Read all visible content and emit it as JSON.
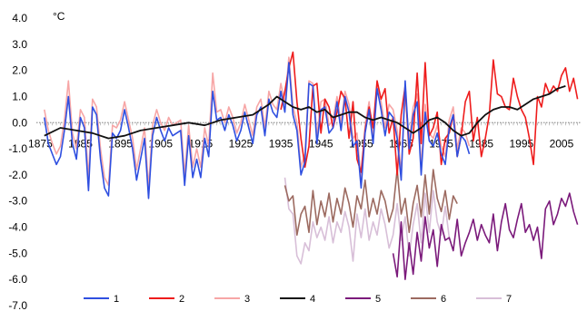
{
  "chart_data": {
    "type": "line",
    "ylabel": "°C",
    "xlim": [
      1874,
      2010
    ],
    "ylim": [
      -7.0,
      4.0
    ],
    "x_ticks": [
      1875,
      1885,
      1895,
      1905,
      1915,
      1925,
      1935,
      1945,
      1955,
      1965,
      1975,
      1985,
      1995,
      2005
    ],
    "y_ticks": [
      4.0,
      3.0,
      2.0,
      1.0,
      0.0,
      -1.0,
      -2.0,
      -3.0,
      -4.0,
      -5.0,
      -6.0,
      -7.0
    ],
    "y_tick_labels": [
      "4.0",
      "3.0",
      "2.0",
      "1.0",
      "0.0",
      "-1.0",
      "-2.0",
      "-3.0",
      "-4.0",
      "-5.0",
      "-6.0",
      "-7.0"
    ],
    "x_tick_labels": [
      "1875",
      "1885",
      "1895",
      "1905",
      "1915",
      "1925",
      "1935",
      "1945",
      "1955",
      "1965",
      "1975",
      "1985",
      "1995",
      "2005"
    ],
    "legend_position": "bottom",
    "series": [
      {
        "name": "1",
        "color": "#2f4fe0",
        "x": [
          1876,
          1877,
          1878,
          1879,
          1880,
          1881,
          1882,
          1883,
          1884,
          1885,
          1886,
          1887,
          1888,
          1889,
          1890,
          1891,
          1892,
          1893,
          1894,
          1895,
          1896,
          1897,
          1898,
          1899,
          1900,
          1901,
          1902,
          1903,
          1904,
          1905,
          1906,
          1907,
          1908,
          1909,
          1910,
          1911,
          1912,
          1913,
          1914,
          1915,
          1916,
          1917,
          1918,
          1919,
          1920,
          1921,
          1922,
          1923,
          1924,
          1925,
          1926,
          1927,
          1928,
          1929,
          1930,
          1931,
          1932,
          1933,
          1934,
          1935,
          1936,
          1937,
          1938,
          1939,
          1940,
          1941,
          1942,
          1943,
          1944,
          1945,
          1946,
          1947,
          1948,
          1949,
          1950,
          1951,
          1952,
          1953,
          1954,
          1955,
          1956,
          1957,
          1958,
          1959,
          1960,
          1961,
          1962,
          1963,
          1964,
          1965,
          1966,
          1967,
          1968,
          1969,
          1970,
          1971,
          1972,
          1973,
          1974,
          1975,
          1976,
          1977,
          1978,
          1979,
          1980,
          1981,
          1982
        ],
        "y": [
          0.2,
          -0.8,
          -1.2,
          -1.6,
          -1.3,
          -0.3,
          1.0,
          -0.8,
          -1.4,
          0.2,
          -0.2,
          -2.6,
          0.6,
          0.3,
          -1.4,
          -2.5,
          -2.8,
          -0.4,
          -0.6,
          -0.3,
          0.5,
          -0.2,
          -1.0,
          -2.2,
          -1.4,
          -0.6,
          -2.9,
          -0.5,
          0.2,
          -0.3,
          -0.7,
          -0.2,
          -0.5,
          -0.4,
          -0.3,
          -2.4,
          -0.5,
          -2.1,
          -1.4,
          -2.1,
          -0.6,
          -1.3,
          1.2,
          0.1,
          0.2,
          -0.3,
          0.3,
          -0.1,
          -0.7,
          -0.3,
          0.4,
          -0.2,
          -0.8,
          0.3,
          0.6,
          -0.5,
          0.9,
          0.4,
          0.2,
          1.2,
          0.4,
          2.3,
          0.3,
          -0.3,
          -2.0,
          -1.5,
          1.5,
          1.4,
          -0.8,
          0.5,
          0.6,
          -0.4,
          -0.2,
          0.8,
          -0.3,
          1.0,
          0.4,
          -0.9,
          -0.7,
          -2.5,
          -0.4,
          0.5,
          -0.8,
          1.3,
          0.5,
          -0.5,
          0.4,
          0.2,
          -0.6,
          -2.2,
          1.6,
          -1.0,
          0.3,
          0.8,
          -2.0,
          0.4,
          -0.7,
          -0.9,
          -0.4,
          -1.2,
          -1.6,
          -0.2,
          0.3,
          -1.3,
          -0.5,
          -0.7,
          -1.2
        ]
      },
      {
        "name": "2",
        "color": "#ee1c1c",
        "x": [
          1935,
          1936,
          1937,
          1938,
          1939,
          1940,
          1941,
          1942,
          1943,
          1944,
          1945,
          1946,
          1947,
          1948,
          1949,
          1950,
          1951,
          1952,
          1953,
          1954,
          1955,
          1956,
          1957,
          1958,
          1959,
          1960,
          1961,
          1962,
          1963,
          1964,
          1965,
          1966,
          1967,
          1968,
          1969,
          1970,
          1971,
          1972,
          1973,
          1974,
          1975,
          1976,
          1977,
          1978,
          1979,
          1980,
          1981,
          1982,
          1983,
          1984,
          1985,
          1986,
          1987,
          1988,
          1989,
          1990,
          1991,
          1992,
          1993,
          1994,
          1995,
          1996,
          1997,
          1998,
          1999,
          2000,
          2001,
          2002,
          2003,
          2004,
          2005,
          2006,
          2007,
          2008,
          2009
        ],
        "y": [
          0.5,
          1.2,
          2.1,
          2.7,
          0.8,
          -0.6,
          -1.7,
          -0.9,
          1.4,
          1.5,
          -0.4,
          0.9,
          0.6,
          -0.2,
          0.4,
          1.2,
          0.9,
          -0.6,
          0.8,
          -1.4,
          -1.9,
          -0.3,
          0.6,
          -0.2,
          1.6,
          0.9,
          1.3,
          -0.4,
          0.2,
          -2.0,
          0.3,
          1.4,
          -1.2,
          -0.6,
          1.9,
          -0.8,
          2.3,
          -0.5,
          -0.2,
          0.4,
          -1.6,
          -0.6,
          -0.4,
          0.3,
          -1.3,
          -0.5,
          0.8,
          1.2,
          -0.7,
          0.2,
          -1.3,
          -0.6,
          0.3,
          2.4,
          1.1,
          1.0,
          0.6,
          0.5,
          1.7,
          1.0,
          0.5,
          0.2,
          -0.6,
          -1.6,
          1.0,
          0.6,
          1.5,
          1.1,
          1.4,
          1.2,
          1.8,
          2.1,
          1.2,
          1.7,
          0.9
        ]
      },
      {
        "name": "3",
        "color": "#f7a6a6",
        "x": [
          1876,
          1877,
          1878,
          1879,
          1880,
          1881,
          1882,
          1883,
          1884,
          1885,
          1886,
          1887,
          1888,
          1889,
          1890,
          1891,
          1892,
          1893,
          1894,
          1895,
          1896,
          1897,
          1898,
          1899,
          1900,
          1901,
          1902,
          1903,
          1904,
          1905,
          1906,
          1907,
          1908,
          1909,
          1910,
          1911,
          1912,
          1913,
          1914,
          1915,
          1916,
          1917,
          1918,
          1919,
          1920,
          1921,
          1922,
          1923,
          1924,
          1925,
          1926,
          1927,
          1928,
          1929,
          1930,
          1931,
          1932,
          1933,
          1934,
          1935,
          1936,
          1937,
          1938,
          1939,
          1940,
          1941,
          1942,
          1943,
          1944,
          1945,
          1946,
          1947,
          1948,
          1949,
          1950,
          1951,
          1952,
          1953,
          1954,
          1955,
          1956,
          1957,
          1958,
          1959,
          1960,
          1961,
          1962,
          1963,
          1964,
          1965,
          1966,
          1967,
          1968,
          1969,
          1970,
          1971,
          1972,
          1973,
          1974,
          1975,
          1976,
          1977,
          1978,
          1979,
          1980,
          1981,
          1982
        ],
        "y": [
          0.5,
          -0.3,
          -0.8,
          -1.2,
          -0.9,
          0.1,
          1.6,
          -0.4,
          -1.0,
          0.5,
          0.2,
          -2.1,
          0.9,
          0.6,
          -1.0,
          -2.1,
          -2.4,
          -0.1,
          -0.2,
          0.1,
          0.8,
          0.1,
          -0.6,
          -1.8,
          -1.0,
          -0.2,
          -2.5,
          -0.1,
          0.5,
          0.0,
          -0.3,
          0.2,
          -0.1,
          0.0,
          0.1,
          -2.0,
          -0.1,
          -1.7,
          -1.0,
          -1.7,
          -0.2,
          -0.9,
          1.9,
          0.4,
          0.5,
          0.0,
          0.6,
          0.2,
          -0.4,
          0.0,
          0.7,
          0.1,
          -0.5,
          0.6,
          0.9,
          -0.2,
          1.2,
          0.7,
          0.5,
          1.5,
          0.7,
          2.5,
          0.6,
          0.0,
          -1.7,
          -1.2,
          1.6,
          1.5,
          -0.5,
          0.8,
          0.9,
          -0.1,
          0.1,
          1.0,
          0.0,
          1.2,
          0.7,
          -0.6,
          -0.4,
          -2.2,
          -0.1,
          0.8,
          -0.5,
          1.5,
          0.8,
          -0.2,
          0.7,
          0.5,
          -0.3,
          -1.9,
          1.2,
          -0.7,
          0.6,
          1.1,
          -1.7,
          0.7,
          -0.4,
          -0.6,
          -0.1,
          -0.9,
          -1.3,
          0.1,
          0.6,
          -1.0,
          -0.2,
          -0.4,
          -0.9
        ]
      },
      {
        "name": "4",
        "color": "#111111",
        "x": [
          1876,
          1880,
          1884,
          1888,
          1892,
          1896,
          1900,
          1904,
          1908,
          1912,
          1916,
          1920,
          1924,
          1928,
          1932,
          1934,
          1936,
          1938,
          1940,
          1942,
          1944,
          1946,
          1948,
          1950,
          1952,
          1954,
          1956,
          1958,
          1960,
          1962,
          1964,
          1966,
          1968,
          1970,
          1972,
          1974,
          1976,
          1978,
          1980,
          1982,
          1984,
          1986,
          1988,
          1990,
          1992,
          1994,
          1996,
          1998,
          2000,
          2002,
          2004,
          2006
        ],
        "y": [
          -0.5,
          -0.2,
          -0.3,
          -0.4,
          -0.6,
          -0.5,
          -0.3,
          -0.2,
          -0.1,
          0.0,
          -0.1,
          0.1,
          0.2,
          0.3,
          0.7,
          1.0,
          0.8,
          0.6,
          0.5,
          0.6,
          0.4,
          0.5,
          0.2,
          0.3,
          0.4,
          0.4,
          0.2,
          0.1,
          0.2,
          0.1,
          0.0,
          -0.2,
          -0.4,
          -0.2,
          0.1,
          0.2,
          0.0,
          -0.3,
          -0.5,
          -0.4,
          0.0,
          0.3,
          0.5,
          0.6,
          0.6,
          0.5,
          0.7,
          0.9,
          1.0,
          1.1,
          1.3,
          1.4
        ]
      },
      {
        "name": "5",
        "color": "#7b1a7b",
        "x": [
          1963,
          1964,
          1965,
          1966,
          1967,
          1968,
          1969,
          1970,
          1971,
          1972,
          1973,
          1974,
          1975,
          1976,
          1977,
          1978,
          1979,
          1980,
          1981,
          1982,
          1983,
          1984,
          1985,
          1986,
          1987,
          1988,
          1989,
          1990,
          1991,
          1992,
          1993,
          1994,
          1995,
          1996,
          1997,
          1998,
          1999,
          2000,
          2001,
          2002,
          2003,
          2004,
          2005,
          2006,
          2007,
          2008,
          2009
        ],
        "y": [
          -5.0,
          -5.9,
          -3.8,
          -6.0,
          -4.6,
          -5.8,
          -4.2,
          -5.3,
          -3.6,
          -4.8,
          -4.1,
          -5.5,
          -3.9,
          -4.5,
          -4.4,
          -4.9,
          -3.7,
          -5.1,
          -4.6,
          -4.2,
          -3.7,
          -4.5,
          -3.9,
          -4.3,
          -4.6,
          -3.5,
          -4.9,
          -3.8,
          -3.1,
          -4.1,
          -4.4,
          -3.7,
          -3.1,
          -4.2,
          -3.9,
          -4.5,
          -4.0,
          -5.2,
          -3.3,
          -3.0,
          -3.9,
          -3.5,
          -2.9,
          -3.2,
          -2.7,
          -3.4,
          -3.9
        ]
      },
      {
        "name": "6",
        "color": "#9c6a60",
        "x": [
          1936,
          1937,
          1938,
          1939,
          1940,
          1941,
          1942,
          1943,
          1944,
          1945,
          1946,
          1947,
          1948,
          1949,
          1950,
          1951,
          1952,
          1953,
          1954,
          1955,
          1956,
          1957,
          1958,
          1959,
          1960,
          1961,
          1962,
          1963,
          1964,
          1965,
          1966,
          1967,
          1968,
          1969,
          1970,
          1971,
          1972,
          1973,
          1974,
          1975,
          1976,
          1977,
          1978,
          1979
        ],
        "y": [
          -2.4,
          -3.0,
          -2.8,
          -4.3,
          -3.5,
          -3.2,
          -4.2,
          -2.6,
          -3.9,
          -3.0,
          -3.6,
          -2.7,
          -3.8,
          -2.9,
          -3.5,
          -2.5,
          -3.1,
          -4.0,
          -2.8,
          -3.3,
          -2.2,
          -3.6,
          -2.9,
          -3.5,
          -2.6,
          -3.0,
          -3.8,
          -3.3,
          -1.8,
          -3.5,
          -2.9,
          -4.2,
          -3.1,
          -2.4,
          -3.6,
          -2.0,
          -3.5,
          -1.8,
          -2.9,
          -3.4,
          -2.6,
          -3.7,
          -2.8,
          -3.1
        ]
      },
      {
        "name": "7",
        "color": "#d8bfd8",
        "x": [
          1936,
          1937,
          1938,
          1939,
          1940,
          1941,
          1942,
          1943,
          1944,
          1945,
          1946,
          1947,
          1948,
          1949,
          1950,
          1951,
          1952,
          1953,
          1954,
          1955,
          1956,
          1957,
          1958,
          1959,
          1960,
          1961,
          1962,
          1963,
          1964,
          1965,
          1966,
          1967,
          1968,
          1969,
          1970,
          1971,
          1972,
          1973,
          1974,
          1975,
          1976,
          1977
        ],
        "y": [
          -2.1,
          -3.3,
          -3.5,
          -5.1,
          -5.4,
          -4.6,
          -4.9,
          -3.8,
          -4.4,
          -4.0,
          -4.5,
          -3.6,
          -4.6,
          -3.8,
          -4.2,
          -3.4,
          -4.0,
          -5.3,
          -3.5,
          -4.4,
          -3.3,
          -4.5,
          -3.8,
          -4.3,
          -3.3,
          -3.9,
          -4.8,
          -4.3,
          -3.1,
          -4.5,
          -3.6,
          -5.1,
          -3.9,
          -3.1,
          -4.6,
          -2.7,
          -4.2,
          -2.6,
          -3.8,
          -4.3,
          -3.2,
          -4.4
        ]
      }
    ]
  }
}
